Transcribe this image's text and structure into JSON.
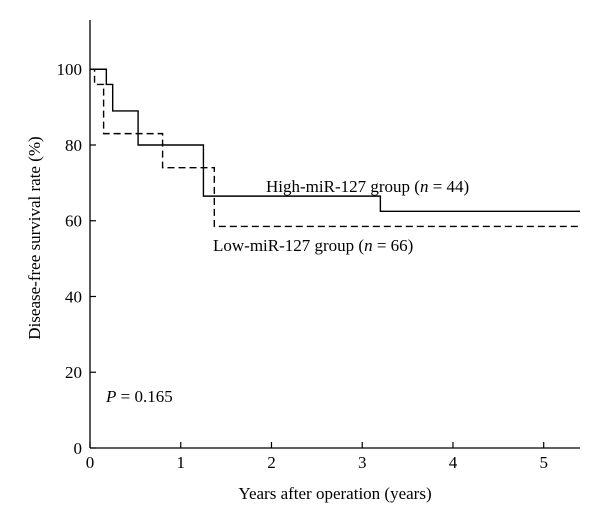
{
  "chart_data": {
    "type": "line",
    "step": true,
    "xlabel": "Years after operation (years)",
    "ylabel": "Disease-free survival rate (%)",
    "xlim": [
      0,
      5.4
    ],
    "ylim": [
      0,
      113
    ],
    "xticks": [
      0,
      1,
      2,
      3,
      4,
      5
    ],
    "yticks": [
      0,
      20,
      40,
      60,
      80,
      100
    ],
    "grid": false,
    "series": [
      {
        "name": "High-miR-127 group",
        "line_style": "solid",
        "color": "#000000",
        "x": [
          0,
          0.18,
          0.25,
          0.53,
          1.25,
          3.2,
          5.4
        ],
        "y": [
          100,
          96,
          89,
          80,
          66.5,
          62.5,
          62.5
        ]
      },
      {
        "name": "Low-miR-127 group",
        "line_style": "dashed",
        "color": "#000000",
        "x": [
          0,
          0.05,
          0.15,
          0.8,
          1.37,
          5.4
        ],
        "y": [
          100,
          96,
          83,
          74,
          58.5,
          58.5
        ]
      }
    ],
    "annotations": {
      "high": {
        "prefix": "High-miR-127 group (",
        "n": "n",
        "suffix": " = 44)"
      },
      "low": {
        "prefix": "Low-miR-127 group (",
        "n": "n",
        "suffix": " = 66)"
      },
      "pvalue": {
        "p": "P",
        "rest": " = 0.165"
      }
    }
  }
}
